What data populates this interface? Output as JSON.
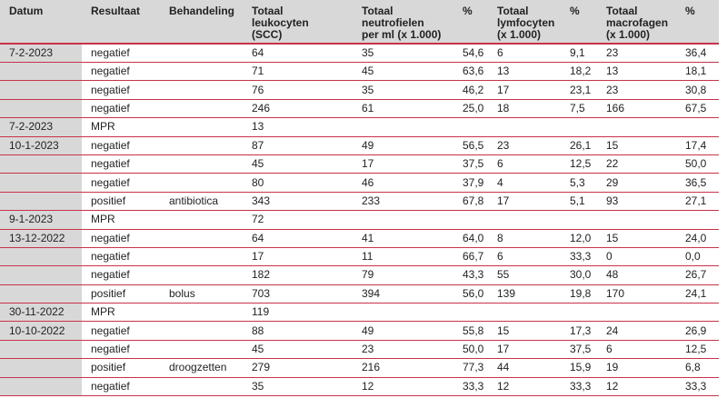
{
  "headers": [
    "Datum",
    "Resultaat",
    "Behandeling",
    "Totaal\nleukocyten\n(SCC)",
    "Totaal\nneutrofielen\nper ml (x 1.000)",
    "%",
    "Totaal\nlymfocyten\n(x 1.000)",
    "%",
    "Totaal\nmacrofagen\n(x 1.000)",
    "%"
  ],
  "rows": [
    [
      "7-2-2023",
      "negatief",
      "",
      "64",
      "35",
      "54,6",
      "6",
      "9,1",
      "23",
      "36,4"
    ],
    [
      "",
      "negatief",
      "",
      "71",
      "45",
      "63,6",
      "13",
      "18,2",
      "13",
      "18,1"
    ],
    [
      "",
      "negatief",
      "",
      "76",
      "35",
      "46,2",
      "17",
      "23,1",
      "23",
      "30,8"
    ],
    [
      "",
      "negatief",
      "",
      "246",
      "61",
      "25,0",
      "18",
      "7,5",
      "166",
      "67,5"
    ],
    [
      "7-2-2023",
      "MPR",
      "",
      "13",
      "",
      "",
      "",
      "",
      "",
      ""
    ],
    [
      "10-1-2023",
      "negatief",
      "",
      "87",
      "49",
      "56,5",
      "23",
      "26,1",
      "15",
      "17,4"
    ],
    [
      "",
      "negatief",
      "",
      "45",
      "17",
      "37,5",
      "6",
      "12,5",
      "22",
      "50,0"
    ],
    [
      "",
      "negatief",
      "",
      "80",
      "46",
      "37,9",
      "4",
      "5,3",
      "29",
      "36,5"
    ],
    [
      "",
      "positief",
      "antibiotica",
      "343",
      "233",
      "67,8",
      "17",
      "5,1",
      "93",
      "27,1"
    ],
    [
      "9-1-2023",
      "MPR",
      "",
      "72",
      "",
      "",
      "",
      "",
      "",
      ""
    ],
    [
      "13-12-2022",
      "negatief",
      "",
      "64",
      "41",
      "64,0",
      "8",
      "12,0",
      "15",
      "24,0"
    ],
    [
      "",
      "negatief",
      "",
      "17",
      "11",
      "66,7",
      "6",
      "33,3",
      "0",
      "0,0"
    ],
    [
      "",
      "negatief",
      "",
      "182",
      "79",
      "43,3",
      "55",
      "30,0",
      "48",
      "26,7"
    ],
    [
      "",
      "positief",
      "bolus",
      "703",
      "394",
      "56,0",
      "139",
      "19,8",
      "170",
      "24,1"
    ],
    [
      "30-11-2022",
      "MPR",
      "",
      "119",
      "",
      "",
      "",
      "",
      "",
      ""
    ],
    [
      "10-10-2022",
      "negatief",
      "",
      "88",
      "49",
      "55,8",
      "15",
      "17,3",
      "24",
      "26,9"
    ],
    [
      "",
      "negatief",
      "",
      "45",
      "23",
      "50,0",
      "17",
      "37,5",
      "6",
      "12,5"
    ],
    [
      "",
      "positief",
      "droogzetten",
      "279",
      "216",
      "77,3",
      "44",
      "15,9",
      "19",
      "6,8"
    ],
    [
      "",
      "negatief",
      "",
      "35",
      "12",
      "33,3",
      "12",
      "33,3",
      "12",
      "33,3"
    ]
  ],
  "colors": {
    "header_bg": "#d8d8d8",
    "rule": "#c8324a"
  }
}
